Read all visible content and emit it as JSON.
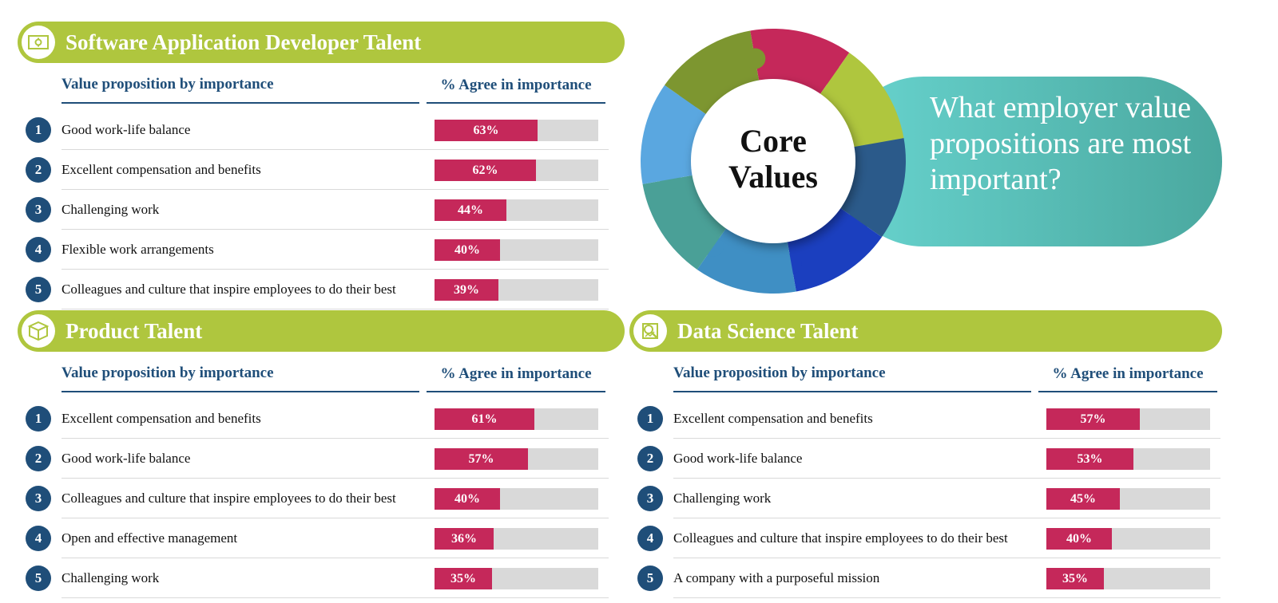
{
  "core": {
    "title_line1": "Core",
    "title_line2": "Values",
    "question": "What employer value propositions are most important?",
    "puzzle_colors": [
      "#c5285a",
      "#afc63e",
      "#2b5a8a",
      "#1b3fbf",
      "#3f8fc4",
      "#4aa097",
      "#5aa7e0",
      "#7d9630"
    ]
  },
  "colors": {
    "banner": "#afc63e",
    "bar": "#c5285a",
    "track": "#d9d9d9",
    "heading": "#1f4e79"
  },
  "chart_data": [
    {
      "type": "bar",
      "title": "Software Application Developer Talent",
      "icon": "monitor-gear-icon",
      "xlabel": "Value proposition by importance",
      "ylabel": "% Agree in importance",
      "ylim": [
        0,
        100
      ],
      "categories": [
        "Good work-life balance",
        "Excellent compensation and benefits",
        "Challenging work",
        "Flexible work arrangements",
        "Colleagues and culture that inspire employees to do their best"
      ],
      "values": [
        63,
        62,
        44,
        40,
        39
      ],
      "labels": [
        "63%",
        "62%",
        "44%",
        "40%",
        "39%"
      ]
    },
    {
      "type": "bar",
      "title": "Product Talent",
      "icon": "box-icon",
      "xlabel": "Value proposition by importance",
      "ylabel": "% Agree in importance",
      "ylim": [
        0,
        100
      ],
      "categories": [
        "Excellent compensation and benefits",
        "Good work-life balance",
        "Colleagues and culture that inspire employees to do their best",
        "Open and effective management",
        "Challenging work"
      ],
      "values": [
        61,
        57,
        40,
        36,
        35
      ],
      "labels": [
        "61%",
        "57%",
        "40%",
        "36%",
        "35%"
      ]
    },
    {
      "type": "bar",
      "title": "Data Science Talent",
      "icon": "data-analysis-icon",
      "xlabel": "Value proposition by importance",
      "ylabel": "% Agree in importance",
      "ylim": [
        0,
        100
      ],
      "categories": [
        "Excellent compensation and benefits",
        "Good work-life balance",
        "Challenging work",
        "Colleagues and culture that inspire employees to do their best",
        "A company with a purposeful mission"
      ],
      "values": [
        57,
        53,
        45,
        40,
        35
      ],
      "labels": [
        "57%",
        "53%",
        "45%",
        "40%",
        "35%"
      ]
    }
  ]
}
